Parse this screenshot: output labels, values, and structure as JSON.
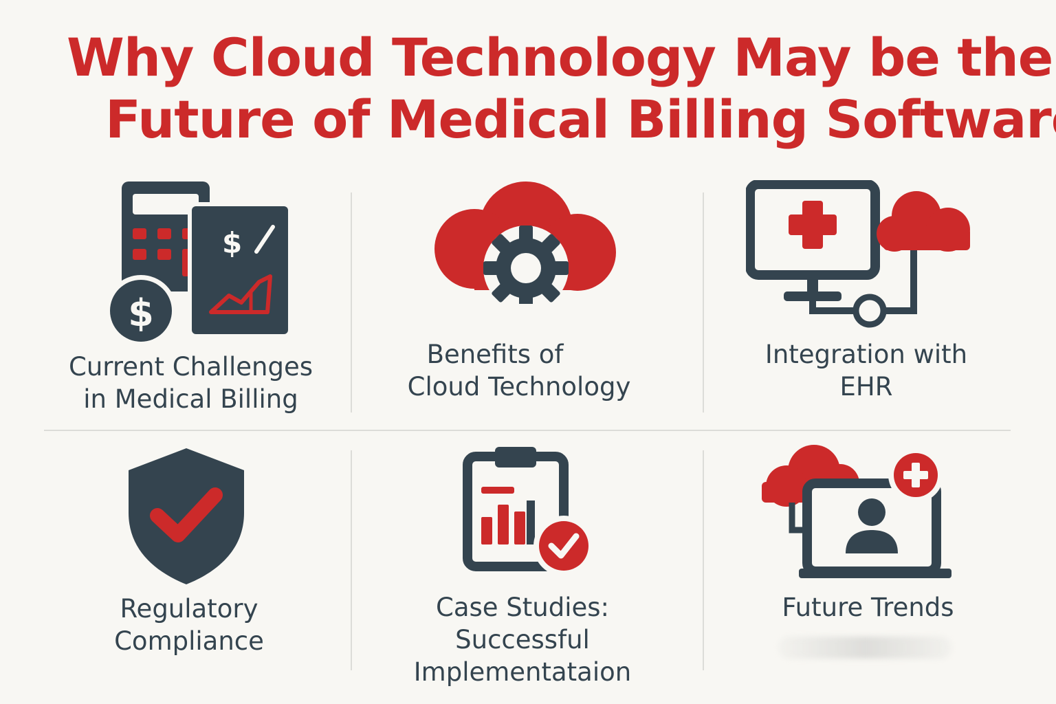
{
  "title": {
    "line1": "Why Cloud Technology May be the",
    "line2": "Future of Medical Billing Software"
  },
  "colors": {
    "accent": "#cc2a2a",
    "dark": "#34444f",
    "background": "#f8f7f3"
  },
  "sections": [
    {
      "icon": "calculator-finance-icon",
      "line1": "Current Challenges",
      "line2": "in Medical Billing",
      "line3": ""
    },
    {
      "icon": "cloud-gear-icon",
      "line1": "Benefits of",
      "line2": "Cloud Technology",
      "line3": ""
    },
    {
      "icon": "monitor-medical-cloud-icon",
      "line1": "Integration with",
      "line2": "EHR",
      "line3": ""
    },
    {
      "icon": "shield-check-icon",
      "line1": "Regulatory",
      "line2": "Compliance",
      "line3": ""
    },
    {
      "icon": "clipboard-chart-check-icon",
      "line1": "Case Studies:",
      "line2": "Successful",
      "line3": "Implementataion"
    },
    {
      "icon": "cloud-laptop-telehealth-icon",
      "line1": "Future Trends",
      "line2": "",
      "line3": ""
    }
  ]
}
